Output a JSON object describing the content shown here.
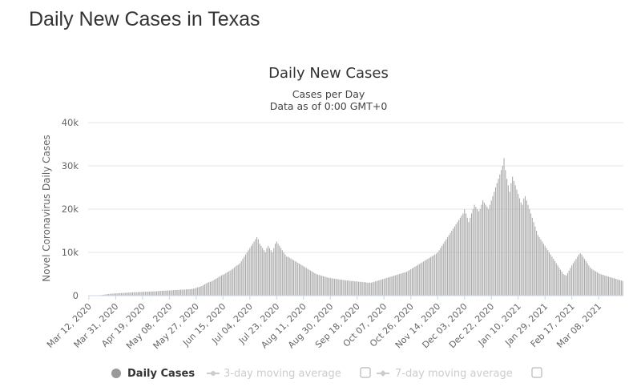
{
  "page": {
    "title": "Daily New Cases in Texas"
  },
  "chart_data": {
    "type": "bar",
    "title": "Daily New Cases",
    "subtitle_lines": [
      "Cases per Day",
      "Data as of 0:00 GMT+0"
    ],
    "ylabel": "Novel Coronavirus Daily Cases",
    "xlabel": "",
    "ylim": [
      0,
      40000
    ],
    "y_ticks": [
      "0",
      "10k",
      "20k",
      "30k",
      "40k"
    ],
    "grid": true,
    "x_start": "2020-03-12",
    "x_end": "2021-03-25",
    "x_tick_labels": [
      "Mar 12, 2020",
      "Mar 31, 2020",
      "Apr 19, 2020",
      "May 08, 2020",
      "May 27, 2020",
      "Jun 15, 2020",
      "Jul 04, 2020",
      "Jul 23, 2020",
      "Aug 11, 2020",
      "Aug 30, 2020",
      "Sep 18, 2020",
      "Oct 07, 2020",
      "Oct 26, 2020",
      "Nov 14, 2020",
      "Dec 03, 2020",
      "Dec 22, 2020",
      "Jan 10, 2021",
      "Jan 29, 2021",
      "Feb 17, 2021",
      "Mar 08, 2021"
    ],
    "series": [
      {
        "name": "Daily Cases",
        "color": "#a9a9a9",
        "values_by_period": [
          {
            "start": "2020-03-12",
            "values": [
              20,
              30,
              40,
              50,
              60,
              70,
              80,
              90,
              110,
              150,
              190,
              240,
              290,
              340,
              390,
              430,
              460,
              480,
              500,
              520,
              540,
              560,
              580,
              600,
              620,
              640,
              660,
              680,
              700,
              720,
              740,
              760,
              780,
              800
            ]
          },
          {
            "start": "2020-04-15",
            "values": [
              800,
              820,
              840,
              850,
              870,
              890,
              900,
              920,
              940,
              950,
              970,
              980,
              1000,
              1000,
              1020,
              1050,
              1080,
              1100,
              1100,
              1120,
              1150,
              1180,
              1200,
              1200,
              1220,
              1250,
              1280,
              1300,
              1300,
              1320,
              1350,
              1380,
              1400,
              1400,
              1420,
              1450,
              1480,
              1500,
              1500,
              1550,
              1600,
              1700,
              1800,
              1900,
              2000,
              2100,
              2200,
              2400,
              2600,
              2800
            ]
          },
          {
            "start": "2020-06-04",
            "values": [
              3000,
              3100,
              3200,
              3300,
              3500,
              3700,
              3900,
              4100,
              4300,
              4500,
              4700,
              4800,
              5000,
              5200,
              5400,
              5600,
              5800,
              6000,
              6200,
              6500,
              6800,
              7000,
              7200,
              7500,
              8000,
              8500,
              9000,
              9500,
              10000,
              10500
            ]
          },
          {
            "start": "2020-07-04",
            "values": [
              11000,
              11500,
              12000,
              12500,
              13000,
              13500,
              13000,
              12000,
              11500,
              11000,
              10500,
              10000,
              11000,
              11500,
              11000,
              10500,
              10000,
              11000,
              12000,
              12500,
              12000,
              11500,
              11000,
              10500,
              10000,
              9500,
              9000
            ]
          },
          {
            "start": "2020-07-31",
            "values": [
              9000,
              8800,
              8600,
              8400,
              8200,
              8000,
              7800,
              7600,
              7400,
              7200,
              7000,
              6800,
              6600,
              6400,
              6200,
              6000,
              5800,
              5600,
              5400,
              5200,
              5000,
              4900,
              4800,
              4700,
              4600,
              4500,
              4400,
              4300,
              4200,
              4100
            ]
          },
          {
            "start": "2020-08-30",
            "values": [
              4100,
              4000,
              4000,
              3900,
              3900,
              3800,
              3800,
              3700,
              3700,
              3600,
              3600,
              3500,
              3500,
              3500,
              3400,
              3400,
              3400,
              3300,
              3300,
              3300,
              3200,
              3200,
              3200,
              3100,
              3100,
              3100,
              3000,
              3000,
              3000,
              3000,
              3100,
              3200,
              3300,
              3400,
              3500,
              3600,
              3700,
              3800
            ]
          },
          {
            "start": "2020-10-07",
            "values": [
              3900,
              4000,
              4100,
              4200,
              4300,
              4400,
              4500,
              4600,
              4700,
              4800,
              4900,
              5000,
              5100,
              5200,
              5300,
              5400,
              5500,
              5700,
              5900,
              6100,
              6300,
              6500,
              6700,
              6900,
              7100,
              7300,
              7500,
              7700,
              7900,
              8100,
              8300,
              8500,
              8700,
              8900,
              9100,
              9300,
              9500,
              9700
            ]
          },
          {
            "start": "2020-11-14",
            "values": [
              10000,
              10500,
              11000,
              11500,
              12000,
              12500,
              13000,
              13500,
              14000,
              14500,
              15000,
              15500,
              16000,
              16500,
              17000,
              17500,
              18000,
              18500,
              19000,
              20000,
              19000,
              18000,
              17000,
              18000,
              19000,
              20000,
              21000,
              20500,
              20000,
              19500
            ]
          },
          {
            "start": "2020-12-14",
            "values": [
              20000,
              21000,
              22000,
              21500,
              21000,
              20500,
              20000,
              21000,
              22000,
              23000,
              24000,
              25000,
              26000,
              27000,
              28000,
              29000,
              30000,
              31800,
              29000,
              27000,
              25500,
              24000,
              26000,
              27500,
              26500,
              25500,
              24500,
              23500,
              22500,
              21500,
              21000,
              22500,
              23000,
              22000,
              21000,
              20000,
              19000,
              18000,
              17000,
              16000,
              15000,
              14000,
              13500
            ]
          },
          {
            "start": "2021-01-26",
            "values": [
              13000,
              12500,
              12000,
              11500,
              11000,
              10500,
              10000,
              9500,
              9000,
              8500,
              8000,
              7500,
              7000,
              6500,
              6000,
              5500,
              5000,
              4800,
              4600,
              5200,
              5800,
              6400,
              7000,
              7500,
              8000,
              8500,
              9000,
              9500,
              9800,
              9500,
              9000,
              8500,
              8000,
              7500,
              7000,
              6500,
              6200,
              6000
            ]
          },
          {
            "start": "2021-03-05",
            "values": [
              5800,
              5600,
              5400,
              5200,
              5000,
              4900,
              4800,
              4700,
              4600,
              4500,
              4400,
              4300,
              4200,
              4100,
              4000,
              3900,
              3800,
              3700,
              3600,
              3500,
              3400
            ]
          }
        ]
      },
      {
        "name": "3-day moving average",
        "color": "#cccccc"
      },
      {
        "name": "7-day moving average",
        "color": "#cccccc"
      }
    ],
    "legend": {
      "placement": "bottom"
    }
  }
}
